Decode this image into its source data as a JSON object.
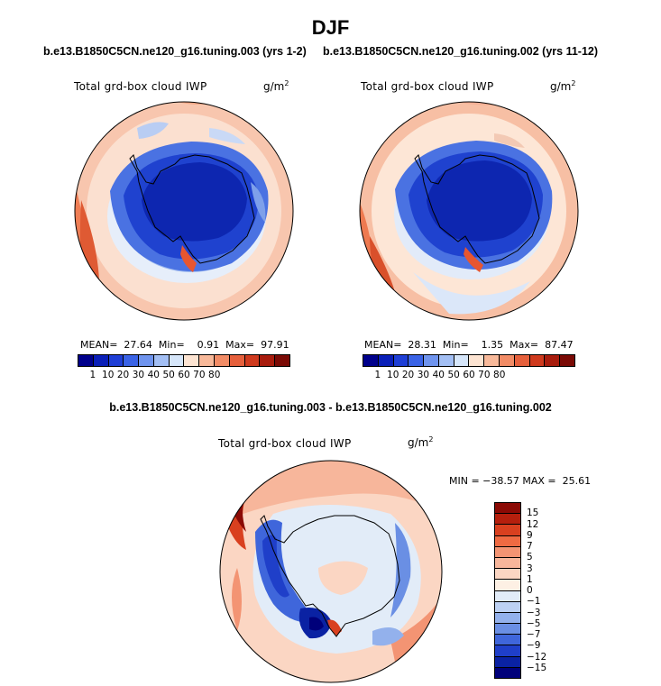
{
  "title": "DJF",
  "panels": [
    {
      "case": "b.e13.B1850C5CN.ne120_g16.tuning.003 (yrs 1-2)",
      "variable": "Total grd-box cloud IWP",
      "units": "g/m",
      "units_exp": "2",
      "mean_label": "MEAN=",
      "mean": "27.64",
      "min_label": "Min=",
      "min": "0.91",
      "max_label": "Max=",
      "max": "97.91"
    },
    {
      "case": "b.e13.B1850C5CN.ne120_g16.tuning.002 (yrs 11-12)",
      "variable": "Total grd-box cloud IWP",
      "units": "g/m",
      "units_exp": "2",
      "mean_label": "MEAN=",
      "mean": "28.31",
      "min_label": "Min=",
      "min": "1.35",
      "max_label": "Max=",
      "max": "87.47"
    }
  ],
  "diff": {
    "case": "b.e13.B1850C5CN.ne120_g16.tuning.003 - b.e13.B1850C5CN.ne120_g16.tuning.002",
    "variable": "Total grd-box cloud IWP",
    "units": "g/m",
    "units_exp": "2",
    "minmax": "MIN = −38.57 MAX =  25.61"
  },
  "colorbar_abs": {
    "levels": [
      "1",
      "10",
      "20",
      "30",
      "40",
      "50",
      "60",
      "70",
      "80"
    ],
    "colors": [
      "#00008b",
      "#0a1fb8",
      "#1f3fd6",
      "#3a63e6",
      "#6f94ee",
      "#a3bff4",
      "#d6e6fa",
      "#fde4d2",
      "#f8b99a",
      "#f28c66",
      "#e6603c",
      "#cf3a1e",
      "#a81c0d",
      "#7a0a05"
    ]
  },
  "colorbar_diff": {
    "levels": [
      "15",
      "12",
      "9",
      "7",
      "5",
      "3",
      "1",
      "0",
      "−1",
      "−3",
      "−5",
      "−7",
      "−9",
      "−12",
      "−15"
    ],
    "colors": [
      "#8b0a05",
      "#b51f0d",
      "#d9401f",
      "#ef6a42",
      "#f39473",
      "#f7b69b",
      "#fbd6c3",
      "#fdf0e4",
      "#e2ecf8",
      "#bdd1f3",
      "#93b1ec",
      "#6a8fe4",
      "#3f66db",
      "#1f3fc9",
      "#0a22a3",
      "#00007a"
    ]
  }
}
